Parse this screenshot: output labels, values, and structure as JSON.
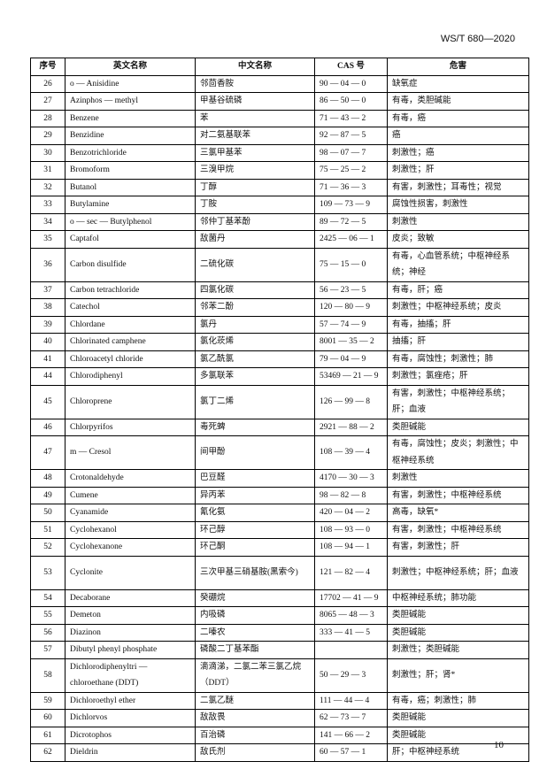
{
  "standard": "WS/T 680—2020",
  "page_number": "10",
  "headers": [
    "序号",
    "英文名称",
    "中文名称",
    "CAS 号",
    "危害"
  ],
  "rows": [
    [
      "26",
      "o — Anisidine",
      "邻茴香胺",
      "90 — 04 — 0",
      "缺氧症"
    ],
    [
      "27",
      "Azinphos — methyl",
      "甲基谷硫磷",
      "86 — 50 — 0",
      "有毒，类胆碱能"
    ],
    [
      "28",
      "Benzene",
      "苯",
      "71 — 43 — 2",
      "有毒，癌"
    ],
    [
      "29",
      "Benzidine",
      "对二氨基联苯",
      "92 — 87 — 5",
      "癌"
    ],
    [
      "30",
      "Benzotrichloride",
      "三氯甲基苯",
      "98 — 07 — 7",
      "刺激性；癌"
    ],
    [
      "31",
      "Bromoform",
      "三溴甲烷",
      "75 — 25 — 2",
      "刺激性；肝"
    ],
    [
      "32",
      "Butanol",
      "丁醇",
      "71 — 36 — 3",
      "有害，刺激性；耳毒性；视觉"
    ],
    [
      "33",
      "Butylamine",
      "丁胺",
      "109 — 73 — 9",
      "腐蚀性损害，刺激性"
    ],
    [
      "34",
      "o — sec — Butylphenol",
      "邻仲丁基苯酚",
      "89 — 72 — 5",
      "刺激性"
    ],
    [
      "35",
      "Captafol",
      "敌菌丹",
      "2425 — 06 — 1",
      "皮炎；致敏"
    ],
    [
      "36",
      "Carbon disulfide",
      "二硫化碳",
      "75 — 15 — 0",
      "有毒，心血管系统；中枢神经系统；神经"
    ],
    [
      "37",
      "Carbon tetrachloride",
      "四氯化碳",
      "56 — 23 — 5",
      "有毒，肝；癌"
    ],
    [
      "38",
      "Catechol",
      "邻苯二酚",
      "120 — 80 — 9",
      "刺激性；中枢神经系统；皮炎"
    ],
    [
      "39",
      "Chlordane",
      "氯丹",
      "57 — 74 — 9",
      "有毒，抽搐；肝"
    ],
    [
      "40",
      "Chlorinated camphene",
      "氯化莰烯",
      "8001 — 35 — 2",
      "抽搐；肝"
    ],
    [
      "41",
      "Chloroacetyl chloride",
      "氯乙酰氯",
      "79 — 04 — 9",
      "有毒，腐蚀性；刺激性；肺"
    ],
    [
      "44",
      "Chlorodiphenyl",
      "多氯联苯",
      "53469 — 21 — 9",
      "刺激性；氯痤疮；肝"
    ],
    [
      "45",
      "Chloroprene",
      "氯丁二烯",
      "126 — 99 — 8",
      "有害，刺激性；中枢神经系统；肝；血液"
    ],
    [
      "46",
      "Chlorpyrifos",
      "毒死蜱",
      "2921 — 88 — 2",
      "类胆碱能"
    ],
    [
      "47",
      "m — Cresol",
      "间甲酚",
      "108 — 39 — 4",
      "有毒，腐蚀性；皮炎；刺激性；中枢神经系统"
    ],
    [
      "48",
      "Crotonaldehyde",
      "巴豆醛",
      "4170 — 30 — 3",
      "刺激性"
    ],
    [
      "49",
      "Cumene",
      "异丙苯",
      "98 — 82 — 8",
      "有害，刺激性；中枢神经系统"
    ],
    [
      "50",
      "Cyanamide",
      "氰化氨",
      "420 — 04 — 2",
      "高毒，缺氧*"
    ],
    [
      "51",
      "Cyclohexanol",
      "环己醇",
      "108 — 93 — 0",
      "有害，刺激性；中枢神经系统"
    ],
    [
      "52",
      "Cyclohexanone",
      "环己酮",
      "108 — 94 — 1",
      "有害，刺激性；肝"
    ],
    [
      "53",
      "Cyclonite",
      "三次甲基三硝基胺(黑索今)",
      "121 — 82 — 4",
      "刺激性；中枢神经系统；肝；血液"
    ],
    [
      "54",
      "Decaborane",
      "癸硼烷",
      "17702 — 41 — 9",
      "中枢神经系统；肺功能"
    ],
    [
      "55",
      "Demeton",
      "内吸磷",
      "8065 — 48 — 3",
      "类胆碱能"
    ],
    [
      "56",
      "Diazinon",
      "二嗪农",
      "333 — 41 — 5",
      "类胆碱能"
    ],
    [
      "57",
      "Dibutyl phenyl phosphate",
      "磷酸二丁基苯酯",
      "",
      "刺激性；类胆碱能"
    ],
    [
      "58",
      "Dichlorodiphenyltri — chloroethane (DDT)",
      "滴滴涕，二氯二苯三氯乙烷（DDT）",
      "50 — 29 — 3",
      "刺激性；肝；肾*"
    ],
    [
      "59",
      "Dichloroethyl ether",
      "二氯乙醚",
      "111 — 44 — 4",
      "有毒，癌；刺激性；肺"
    ],
    [
      "60",
      "Dichlorvos",
      "敌敌畏",
      "62 — 73 — 7",
      "类胆碱能"
    ],
    [
      "61",
      "Dicrotophos",
      "百治磷",
      "141 — 66 — 2",
      "类胆碱能"
    ],
    [
      "62",
      "Dieldrin",
      "敌氏剂",
      "60 — 57 — 1",
      "肝；中枢神经系统"
    ]
  ]
}
